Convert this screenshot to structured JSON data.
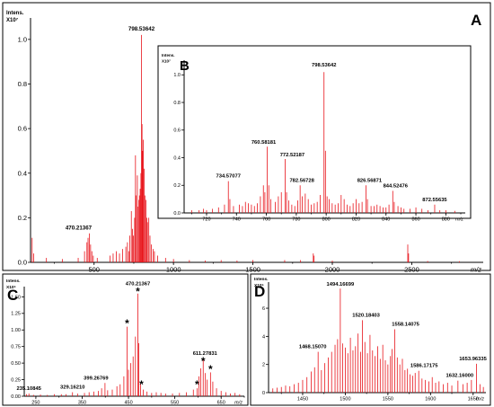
{
  "chart_data": [
    {
      "type": "line",
      "panel": "A",
      "ylabel_lines": [
        "Intens.",
        "X10⁷"
      ],
      "xlabel": "m/z",
      "xlim": [
        100,
        2950
      ],
      "ylim": [
        0,
        1.08
      ],
      "xticks": [
        500,
        1000,
        1500,
        2000,
        2500
      ],
      "xtick_labels": [
        "500",
        "1000",
        "1500",
        "2000",
        "2500"
      ],
      "yticks": [
        0.0,
        0.2,
        0.4,
        0.6,
        0.8,
        1.0
      ],
      "ytick_labels": [
        "0.0",
        "0.2",
        "0.4",
        "0.6",
        "0.8",
        "1.0"
      ],
      "peak_labels": [
        {
          "x": 798.53642,
          "y": 1.02,
          "text": "798.53642"
        },
        {
          "x": 470.21367,
          "y": 0.13,
          "text": "470.21367"
        }
      ],
      "peaks": [
        [
          110,
          0.11
        ],
        [
          120,
          0.04
        ],
        [
          200,
          0.02
        ],
        [
          300,
          0.015
        ],
        [
          400,
          0.02
        ],
        [
          440,
          0.05
        ],
        [
          455,
          0.09
        ],
        [
          462,
          0.11
        ],
        [
          470.2,
          0.13
        ],
        [
          478,
          0.08
        ],
        [
          486,
          0.05
        ],
        [
          495,
          0.03
        ],
        [
          520,
          0.02
        ],
        [
          600,
          0.03
        ],
        [
          620,
          0.04
        ],
        [
          640,
          0.05
        ],
        [
          660,
          0.04
        ],
        [
          680,
          0.06
        ],
        [
          700,
          0.07
        ],
        [
          710,
          0.09
        ],
        [
          718,
          0.05
        ],
        [
          725,
          0.12
        ],
        [
          734.6,
          0.23
        ],
        [
          742,
          0.15
        ],
        [
          748,
          0.12
        ],
        [
          755,
          0.2
        ],
        [
          760.6,
          0.48
        ],
        [
          765,
          0.3
        ],
        [
          772.5,
          0.39
        ],
        [
          776,
          0.25
        ],
        [
          782.6,
          0.28
        ],
        [
          786,
          0.3
        ],
        [
          790,
          0.33
        ],
        [
          795,
          0.4
        ],
        [
          798.5,
          1.02
        ],
        [
          802,
          0.62
        ],
        [
          806,
          0.5
        ],
        [
          810,
          0.55
        ],
        [
          815,
          0.42
        ],
        [
          820,
          0.3
        ],
        [
          826.6,
          0.28
        ],
        [
          832,
          0.2
        ],
        [
          836,
          0.18
        ],
        [
          844.5,
          0.2
        ],
        [
          852,
          0.12
        ],
        [
          860,
          0.08
        ],
        [
          872.6,
          0.06
        ],
        [
          880,
          0.05
        ],
        [
          900,
          0.03
        ],
        [
          950,
          0.02
        ],
        [
          1000,
          0.015
        ],
        [
          1100,
          0.01
        ],
        [
          1200,
          0.008
        ],
        [
          1300,
          0.01
        ],
        [
          1400,
          0.008
        ],
        [
          1500,
          0.01
        ],
        [
          1700,
          0.01
        ],
        [
          1800,
          0.01
        ],
        [
          1880,
          0.04
        ],
        [
          1885,
          0.03
        ],
        [
          2000,
          0.008
        ],
        [
          2475,
          0.08
        ],
        [
          2480,
          0.04
        ],
        [
          2600,
          0.006
        ],
        [
          2800,
          0.005
        ]
      ]
    },
    {
      "type": "line",
      "panel": "B",
      "ylabel_lines": [
        "Intens.",
        "X10⁷"
      ],
      "xlabel": "m/z",
      "xlim": [
        705,
        893
      ],
      "ylim": [
        0,
        1.08
      ],
      "xticks": [
        720,
        740,
        760,
        780,
        800,
        820,
        840,
        860,
        880
      ],
      "xtick_labels": [
        "720",
        "740",
        "760",
        "780",
        "800",
        "820",
        "840",
        "860",
        "880"
      ],
      "yticks": [
        0.0,
        0.2,
        0.4,
        0.6,
        0.8,
        1.0
      ],
      "ytick_labels": [
        "0.0",
        "0.2",
        "0.4",
        "0.6",
        "0.8",
        "1.0"
      ],
      "peak_labels": [
        {
          "x": 798.53642,
          "y": 1.02,
          "text": "798.53642"
        },
        {
          "x": 760.58181,
          "y": 0.48,
          "text": "760.58181"
        },
        {
          "x": 772.52187,
          "y": 0.39,
          "text": "772.52187"
        },
        {
          "x": 734.57077,
          "y": 0.23,
          "text": "734.57077"
        },
        {
          "x": 782.56728,
          "y": 0.2,
          "text": "782.56728"
        },
        {
          "x": 826.56871,
          "y": 0.2,
          "text": "826.56871"
        },
        {
          "x": 844.52476,
          "y": 0.16,
          "text": "844.52476"
        },
        {
          "x": 872.55635,
          "y": 0.06,
          "text": "872.55635"
        }
      ],
      "peaks": [
        [
          710,
          0.02
        ],
        [
          715,
          0.02
        ],
        [
          718,
          0.03
        ],
        [
          720,
          0.02
        ],
        [
          724,
          0.03
        ],
        [
          728,
          0.04
        ],
        [
          732,
          0.06
        ],
        [
          734.57,
          0.23
        ],
        [
          735.6,
          0.1
        ],
        [
          738,
          0.05
        ],
        [
          742,
          0.06
        ],
        [
          744,
          0.05
        ],
        [
          746,
          0.08
        ],
        [
          748,
          0.07
        ],
        [
          750,
          0.06
        ],
        [
          752,
          0.05
        ],
        [
          754,
          0.07
        ],
        [
          756,
          0.12
        ],
        [
          758,
          0.2
        ],
        [
          759,
          0.15
        ],
        [
          760.58,
          0.48
        ],
        [
          761.6,
          0.2
        ],
        [
          763,
          0.1
        ],
        [
          766,
          0.08
        ],
        [
          768,
          0.12
        ],
        [
          770,
          0.15
        ],
        [
          772.52,
          0.39
        ],
        [
          773.5,
          0.15
        ],
        [
          775,
          0.09
        ],
        [
          777,
          0.06
        ],
        [
          779,
          0.05
        ],
        [
          781,
          0.09
        ],
        [
          782.57,
          0.2
        ],
        [
          784,
          0.12
        ],
        [
          786,
          0.14
        ],
        [
          788,
          0.1
        ],
        [
          790,
          0.06
        ],
        [
          792,
          0.07
        ],
        [
          794,
          0.08
        ],
        [
          796,
          0.13
        ],
        [
          798.54,
          1.02
        ],
        [
          799.5,
          0.45
        ],
        [
          800.6,
          0.12
        ],
        [
          802,
          0.1
        ],
        [
          804,
          0.07
        ],
        [
          806,
          0.06
        ],
        [
          808,
          0.07
        ],
        [
          810,
          0.13
        ],
        [
          812,
          0.1
        ],
        [
          814,
          0.06
        ],
        [
          816,
          0.05
        ],
        [
          818,
          0.07
        ],
        [
          820,
          0.1
        ],
        [
          822,
          0.07
        ],
        [
          824,
          0.08
        ],
        [
          826.57,
          0.2
        ],
        [
          827.6,
          0.1
        ],
        [
          830,
          0.05
        ],
        [
          832,
          0.05
        ],
        [
          834,
          0.06
        ],
        [
          836,
          0.05
        ],
        [
          838,
          0.04
        ],
        [
          840,
          0.04
        ],
        [
          842,
          0.06
        ],
        [
          844.52,
          0.16
        ],
        [
          845.5,
          0.08
        ],
        [
          848,
          0.05
        ],
        [
          850,
          0.04
        ],
        [
          852,
          0.03
        ],
        [
          856,
          0.03
        ],
        [
          860,
          0.04
        ],
        [
          864,
          0.03
        ],
        [
          868,
          0.02
        ],
        [
          872.56,
          0.06
        ],
        [
          876,
          0.02
        ],
        [
          880,
          0.02
        ],
        [
          886,
          0.015
        ]
      ]
    },
    {
      "type": "line",
      "panel": "C",
      "ylabel_lines": [
        "Intens.",
        "X10⁶"
      ],
      "xlabel": "m/z",
      "xlim": [
        225,
        700
      ],
      "ylim": [
        0,
        1.6
      ],
      "xticks": [
        250,
        350,
        450,
        550,
        650
      ],
      "xtick_labels": [
        "250",
        "350",
        "450",
        "550",
        "650"
      ],
      "yticks": [
        0.0,
        0.25,
        0.5,
        0.75,
        1.0,
        1.25,
        1.5
      ],
      "ytick_labels": [
        "0.00",
        "0.25",
        "0.50",
        "0.75",
        "1.00",
        "1.25",
        "1.50"
      ],
      "peak_labels": [
        {
          "x": 470.21367,
          "y": 1.55,
          "text": "470.21367"
        },
        {
          "x": 611.27831,
          "y": 0.57,
          "text": "611.27831"
        },
        {
          "x": 399.26769,
          "y": 0.2,
          "text": "399.26769"
        },
        {
          "x": 329.1621,
          "y": 0.06,
          "text": "329.16210"
        },
        {
          "x": 235.10845,
          "y": 0.04,
          "text": "235.10845"
        }
      ],
      "annotations": [
        {
          "x": 470.21,
          "y": 1.55,
          "text": "*"
        },
        {
          "x": 447,
          "y": 1.07,
          "text": "*"
        },
        {
          "x": 478,
          "y": 0.15,
          "text": "*"
        },
        {
          "x": 611.28,
          "y": 0.5,
          "text": "*"
        },
        {
          "x": 598,
          "y": 0.15,
          "text": "*"
        },
        {
          "x": 627,
          "y": 0.38,
          "text": "*"
        }
      ],
      "peaks": [
        [
          230,
          0.03
        ],
        [
          235.1,
          0.04
        ],
        [
          245,
          0.02
        ],
        [
          260,
          0.025
        ],
        [
          275,
          0.02
        ],
        [
          290,
          0.03
        ],
        [
          305,
          0.03
        ],
        [
          315,
          0.03
        ],
        [
          329.16,
          0.06
        ],
        [
          340,
          0.04
        ],
        [
          355,
          0.05
        ],
        [
          365,
          0.06
        ],
        [
          375,
          0.07
        ],
        [
          385,
          0.08
        ],
        [
          392,
          0.12
        ],
        [
          399.27,
          0.2
        ],
        [
          405,
          0.09
        ],
        [
          415,
          0.1
        ],
        [
          425,
          0.15
        ],
        [
          432,
          0.18
        ],
        [
          440,
          0.3
        ],
        [
          447,
          1.05
        ],
        [
          450,
          0.4
        ],
        [
          455,
          0.5
        ],
        [
          460,
          0.6
        ],
        [
          465,
          0.9
        ],
        [
          470.21,
          1.55
        ],
        [
          472,
          0.8
        ],
        [
          476,
          0.2
        ],
        [
          482,
          0.1
        ],
        [
          490,
          0.07
        ],
        [
          500,
          0.05
        ],
        [
          510,
          0.06
        ],
        [
          520,
          0.05
        ],
        [
          530,
          0.04
        ],
        [
          545,
          0.04
        ],
        [
          560,
          0.05
        ],
        [
          575,
          0.06
        ],
        [
          590,
          0.1
        ],
        [
          598,
          0.12
        ],
        [
          602,
          0.3
        ],
        [
          606,
          0.42
        ],
        [
          611.28,
          0.57
        ],
        [
          616,
          0.35
        ],
        [
          620,
          0.25
        ],
        [
          627,
          0.36
        ],
        [
          632,
          0.22
        ],
        [
          640,
          0.12
        ],
        [
          650,
          0.08
        ],
        [
          660,
          0.06
        ],
        [
          670,
          0.04
        ],
        [
          680,
          0.05
        ],
        [
          690,
          0.03
        ]
      ]
    },
    {
      "type": "line",
      "panel": "D",
      "ylabel_lines": [
        "Intens.",
        "X10⁵"
      ],
      "xlabel": "m/z",
      "xlim": [
        1410,
        1665
      ],
      "ylim": [
        0,
        7.6
      ],
      "xticks": [
        1450,
        1500,
        1550,
        1600,
        1650
      ],
      "xtick_labels": [
        "1450",
        "1500",
        "1550",
        "1600",
        "1650"
      ],
      "yticks": [
        0,
        2,
        4,
        6
      ],
      "ytick_labels": [
        "0",
        "2",
        "4",
        "6"
      ],
      "peak_labels": [
        {
          "x": 1494.16699,
          "y": 7.4,
          "text": "1494.16699"
        },
        {
          "x": 1520.18403,
          "y": 5.15,
          "text": "1520.18403"
        },
        {
          "x": 1558.14075,
          "y": 4.5,
          "text": "1558.14075"
        },
        {
          "x": 1468.1507,
          "y": 2.9,
          "text": "1468.15070"
        },
        {
          "x": 1586.17175,
          "y": 1.55,
          "text": "1586.17175"
        },
        {
          "x": 1653.96335,
          "y": 2.05,
          "text": "1653.96335"
        },
        {
          "x": 1632.16,
          "y": 0.85,
          "text": "1632.16000"
        }
      ],
      "peaks": [
        [
          1415,
          0.3
        ],
        [
          1420,
          0.35
        ],
        [
          1425,
          0.4
        ],
        [
          1430,
          0.5
        ],
        [
          1435,
          0.45
        ],
        [
          1440,
          0.6
        ],
        [
          1445,
          0.7
        ],
        [
          1450,
          0.9
        ],
        [
          1455,
          1.1
        ],
        [
          1460,
          1.5
        ],
        [
          1464,
          1.8
        ],
        [
          1468.15,
          2.9
        ],
        [
          1472,
          1.6
        ],
        [
          1476,
          2.1
        ],
        [
          1480,
          2.5
        ],
        [
          1484,
          2.9
        ],
        [
          1488,
          3.4
        ],
        [
          1491,
          3.8
        ],
        [
          1494.17,
          7.4
        ],
        [
          1497,
          3.5
        ],
        [
          1500,
          3.2
        ],
        [
          1503,
          2.8
        ],
        [
          1506,
          3.9
        ],
        [
          1509,
          3.0
        ],
        [
          1512,
          3.3
        ],
        [
          1515,
          4.2
        ],
        [
          1518,
          2.9
        ],
        [
          1520.18,
          5.15
        ],
        [
          1523,
          3.6
        ],
        [
          1526,
          2.8
        ],
        [
          1529,
          4.1
        ],
        [
          1532,
          3.0
        ],
        [
          1535,
          2.6
        ],
        [
          1538,
          3.3
        ],
        [
          1541,
          2.4
        ],
        [
          1544,
          3.4
        ],
        [
          1547,
          2.3
        ],
        [
          1550,
          2.0
        ],
        [
          1553,
          2.6
        ],
        [
          1555,
          3.1
        ],
        [
          1558.14,
          4.5
        ],
        [
          1561,
          2.5
        ],
        [
          1564,
          2.0
        ],
        [
          1567,
          2.4
        ],
        [
          1570,
          1.6
        ],
        [
          1573,
          1.7
        ],
        [
          1576,
          1.3
        ],
        [
          1579,
          1.2
        ],
        [
          1582,
          1.4
        ],
        [
          1586.17,
          1.55
        ],
        [
          1590,
          1.0
        ],
        [
          1594,
          0.9
        ],
        [
          1598,
          0.8
        ],
        [
          1602,
          1.1
        ],
        [
          1606,
          0.7
        ],
        [
          1610,
          0.8
        ],
        [
          1615,
          0.6
        ],
        [
          1620,
          0.7
        ],
        [
          1625,
          0.5
        ],
        [
          1632.16,
          0.85
        ],
        [
          1638,
          0.6
        ],
        [
          1643,
          0.7
        ],
        [
          1648,
          0.9
        ],
        [
          1653.96,
          2.05
        ],
        [
          1658,
          0.6
        ],
        [
          1662,
          0.4
        ]
      ]
    }
  ]
}
